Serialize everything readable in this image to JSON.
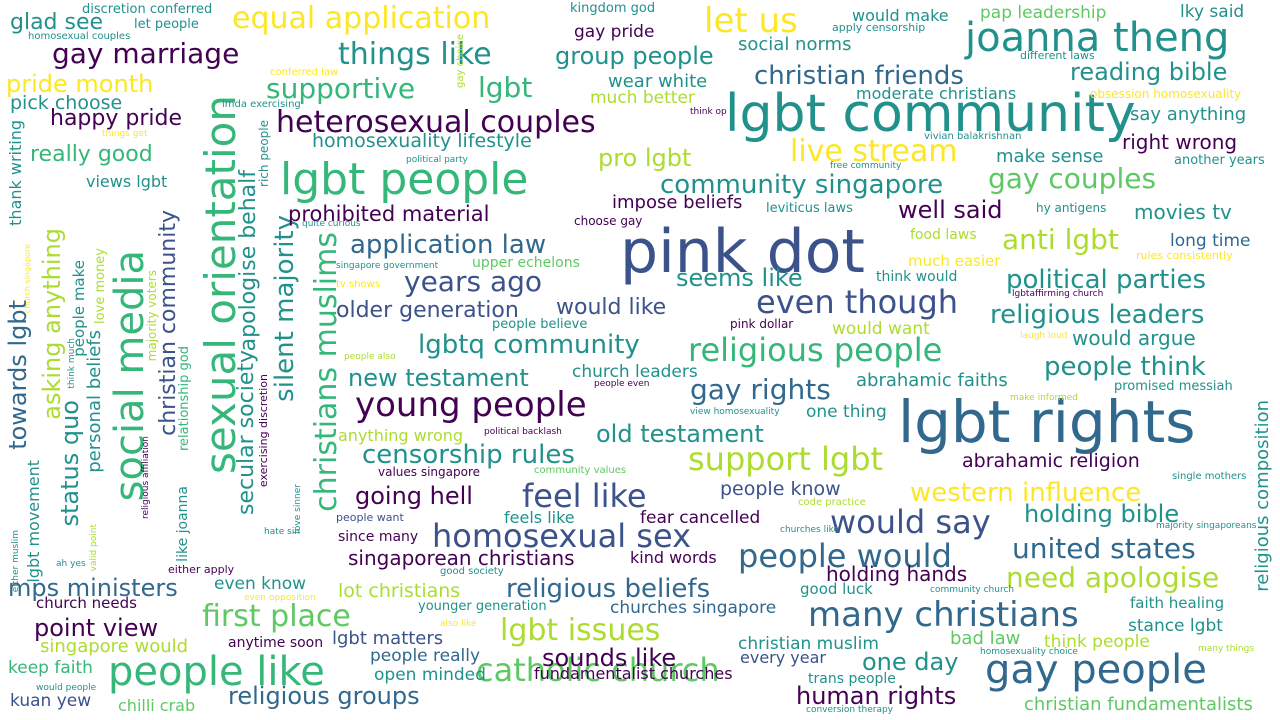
{
  "palette": {
    "purple": "#440154",
    "indigo": "#3b528b",
    "blue": "#31688e",
    "teal": "#21918c",
    "green": "#35b779",
    "lightgreen": "#5ec962",
    "yellowgreen": "#addc30",
    "yellow": "#fde725"
  },
  "words": {
    "w001": "pink dot",
    "w002": "lgbt rights",
    "w003": "lgbt community",
    "w004": "lgbt people",
    "w005": "social media",
    "w006": "sexual orientation",
    "w007": "people like",
    "w008": "gay people",
    "w009": "joanna theng",
    "w010": "young people",
    "w011": "homosexual sex",
    "w012": "catholic church",
    "w013": "many christians",
    "w014": "christians muslims",
    "w015": "feel like",
    "w016": "support lgbt",
    "w017": "religious people",
    "w018": "heterosexual couples",
    "w019": "even though",
    "w020": "would say",
    "w021": "people would",
    "w022": "gay marriage",
    "w023": "things like",
    "w024": "equal application",
    "w025": "let us",
    "w026": "lgbt issues",
    "w027": "first place",
    "w028": "live stream",
    "w029": "gay couples",
    "w030": "community singapore",
    "w031": "christian friends",
    "w032": "silent majority",
    "w033": "years ago",
    "w034": "application law",
    "w035": "united states",
    "w036": "religious beliefs",
    "w037": "censorship rules",
    "w038": "western influence",
    "w039": "need apologise",
    "w040": "gay rights",
    "w041": "religious leaders",
    "w042": "political parties",
    "w043": "anti lgbt",
    "w044": "people think",
    "w045": "supportive",
    "w046": "lgbt",
    "w047": "lgbtq community",
    "w048": "new testament",
    "w049": "old testament",
    "w050": "going hell",
    "w051": "sounds like",
    "w052": "one day",
    "w053": "human rights",
    "w054": "religious groups",
    "w055": "point view",
    "w056": "mps ministers",
    "w057": "reading bible",
    "w058": "holding bible",
    "w059": "pride month",
    "w060": "status quo",
    "w061": "towards lgbt",
    "w062": "asking anything",
    "w063": "secular society",
    "w064": "apologise behalf",
    "w065": "christian community",
    "w066": "pro lgbt",
    "w067": "really good",
    "w068": "seems like",
    "w069": "would like",
    "w070": "older generation",
    "w071": "prohibited material",
    "w072": "homosexuality lifestyle",
    "w073": "happy pride",
    "w074": "glad see",
    "w075": "group people",
    "w076": "well said",
    "w077": "christian fundamentalists",
    "w078": "abrahamic religion",
    "w079": "would argue",
    "w080": "people know",
    "w081": "singaporean christians",
    "w082": "holding hands",
    "w083": "lot christians",
    "w084": "lgbt matters",
    "w085": "churches singapore",
    "w086": "fundamentalist churches",
    "w087": "personal beliefs",
    "w088": "pick choose",
    "w089": "social norms",
    "w090": "make sense",
    "w091": "movies tv",
    "w092": "religious composition",
    "w093": "abrahamic faiths",
    "w094": "church leaders",
    "w095": "much better",
    "w096": "wear white",
    "w097": "moderate christians",
    "w098": "impose beliefs",
    "w099": "one thing",
    "w100": "would want",
    "w101": "long time",
    "w102": "right wrong",
    "w103": "say anything",
    "w104": "anything wrong",
    "w105": "stance lgbt",
    "w106": "bad law",
    "w107": "think people",
    "w108": "faith healing",
    "w109": "singapore would",
    "w110": "people really",
    "w111": "open minded",
    "w112": "christian muslim",
    "w113": "every year",
    "w114": "chilli crab",
    "w115": "kuan yew",
    "w116": "keep faith",
    "w117": "church needs",
    "w118": "even know",
    "w119": "views lgbt",
    "w120": "people make",
    "w121": "lgbt movement",
    "w122": "thank writing",
    "w123": "feels like",
    "w124": "fear cancelled",
    "w125": "kind words",
    "w126": "good luck",
    "w127": "since many",
    "w128": "trans people",
    "w129": "younger generation",
    "w130": "pap leadership",
    "w131": "lky said",
    "w132": "would make",
    "w133": "kingdom god",
    "w134": "discretion conferred",
    "w135": "let people",
    "w136": "homosexual couples",
    "w137": "gay pride",
    "w138": "leviticus laws",
    "w139": "food laws",
    "w140": "much easier",
    "w141": "upper echelons",
    "w142": "think would",
    "w143": "people believe",
    "w144": "pink dollar",
    "w145": "promised messiah",
    "w146": "another years",
    "w147": "hy antigens",
    "w148": "choose gay",
    "w149": "love money",
    "w150": "like joanna",
    "w151": "relationship god",
    "w152": "majority voters",
    "w153": "rich people",
    "w154": "exercising discretion",
    "w155": "apply censorship",
    "w156": "different laws",
    "w157": "obsession homosexuality",
    "w158": "vivian balakrishnan",
    "w159": "free community",
    "w160": "political party",
    "w161": "imda exercising",
    "w162": "conferred law",
    "w163": "gay choice",
    "w164": "things get",
    "w165": "think op",
    "w166": "quite curious",
    "w167": "singapore government",
    "w168": "tv shows",
    "w169": "rules consistently",
    "w170": "lgbtaffirming church",
    "w171": "laugh loud",
    "w172": "people also",
    "w173": "people even",
    "w174": "view homosexuality",
    "w175": "make informed",
    "w176": "political backlash",
    "w177": "values singapore",
    "w178": "community values",
    "w179": "single mothers",
    "w180": "majority singaporeans",
    "w181": "code practice",
    "w182": "churches like",
    "w183": "people want",
    "w184": "hate sin",
    "w185": "love sinner",
    "w186": "either apply",
    "w187": "good society",
    "w188": "either muslim",
    "w189": "valid point",
    "w190": "religious affiliation",
    "w191": "ah yes",
    "w192": "church singapore",
    "w193": "think much",
    "w194": "even opposition",
    "w195": "also like",
    "w196": "anytime soon",
    "w197": "community church",
    "w198": "homosexuality choice",
    "w199": "many things",
    "w200": "would people",
    "w201": "conversion therapy"
  }
}
